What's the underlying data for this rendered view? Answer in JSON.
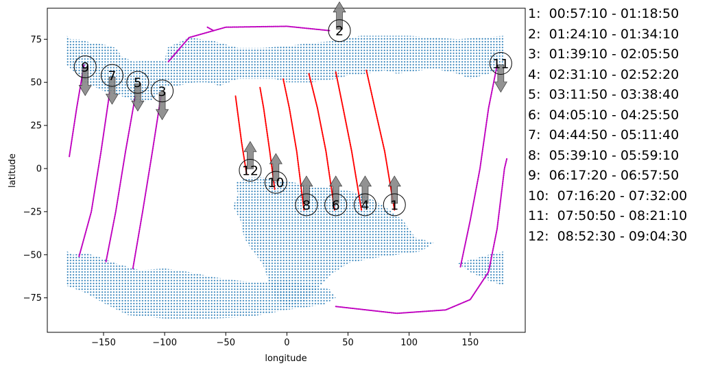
{
  "chart_data": {
    "type": "scatter",
    "title": "",
    "xlabel": "longitude",
    "ylabel": "latitude",
    "xlim": [
      -196,
      195
    ],
    "ylim": [
      -95,
      93
    ],
    "xticks": [
      -150,
      -100,
      -50,
      0,
      50,
      100,
      150
    ],
    "yticks": [
      -75,
      -50,
      -25,
      0,
      25,
      50,
      75
    ],
    "grid": false,
    "colors": {
      "land": "#1f77b4",
      "track_day": "#ff0000",
      "track_night": "#bf00bf",
      "arrow": "#808080",
      "marker": "#000000"
    },
    "land_regions": [
      {
        "lon": [
          -180,
          178
        ],
        "lat": [
          38,
          77
        ],
        "note": "northern band"
      },
      {
        "lon": [
          -180,
          178
        ],
        "lat": [
          -88,
          -48
        ],
        "note": "southern band"
      },
      {
        "lon": [
          -45,
          120
        ],
        "lat": [
          -80,
          -2
        ],
        "note": "central block"
      }
    ],
    "tracks": [
      {
        "id": "1",
        "color": "red",
        "points": [
          [
            88,
            -24
          ],
          [
            80,
            10
          ],
          [
            72,
            35
          ],
          [
            65,
            57
          ]
        ]
      },
      {
        "id": "4",
        "color": "red",
        "points": [
          [
            61,
            -24
          ],
          [
            53,
            10
          ],
          [
            46,
            35
          ],
          [
            40,
            56
          ]
        ]
      },
      {
        "id": "6",
        "color": "red",
        "points": [
          [
            39,
            -24
          ],
          [
            32,
            10
          ],
          [
            25,
            35
          ],
          [
            18,
            55
          ]
        ]
      },
      {
        "id": "8",
        "color": "red",
        "points": [
          [
            14,
            -24
          ],
          [
            8,
            10
          ],
          [
            2,
            35
          ],
          [
            -3,
            52
          ]
        ]
      },
      {
        "id": "10",
        "color": "red",
        "points": [
          [
            -10,
            -12
          ],
          [
            -14,
            10
          ],
          [
            -19,
            35
          ],
          [
            -22,
            47
          ]
        ]
      },
      {
        "id": "12",
        "color": "red",
        "points": [
          [
            -33,
            -3
          ],
          [
            -37,
            15
          ],
          [
            -42,
            42
          ]
        ]
      },
      {
        "id": "9",
        "color": "magenta",
        "points": [
          [
            -178,
            7
          ],
          [
            -172,
            35
          ],
          [
            -166,
            60
          ]
        ]
      },
      {
        "id": "7",
        "color": "magenta",
        "points": [
          [
            -170,
            -51
          ],
          [
            -160,
            -25
          ],
          [
            -152,
            10
          ],
          [
            -145,
            44
          ]
        ]
      },
      {
        "id": "5",
        "color": "magenta",
        "points": [
          [
            -148,
            -54
          ],
          [
            -140,
            -25
          ],
          [
            -132,
            10
          ],
          [
            -124,
            42
          ]
        ]
      },
      {
        "id": "3",
        "color": "magenta",
        "points": [
          [
            -126,
            -58
          ],
          [
            -118,
            -25
          ],
          [
            -110,
            10
          ],
          [
            -103,
            42
          ]
        ]
      },
      {
        "id": "2",
        "color": "magenta",
        "points": [
          [
            -97,
            62
          ],
          [
            -80,
            76
          ],
          [
            -50,
            82
          ],
          [
            0,
            82.5
          ],
          [
            35,
            80
          ]
        ]
      },
      {
        "id": "11",
        "color": "magenta",
        "points": [
          [
            142,
            -57
          ],
          [
            150,
            -30
          ],
          [
            158,
            0
          ],
          [
            165,
            35
          ],
          [
            172,
            60
          ]
        ]
      },
      {
        "id": "11b",
        "color": "magenta",
        "points": [
          [
            -65,
            82
          ],
          [
            -60,
            80
          ]
        ]
      },
      {
        "id": "s",
        "color": "magenta",
        "points": [
          [
            40,
            -80
          ],
          [
            90,
            -84
          ],
          [
            130,
            -82
          ],
          [
            150,
            -76
          ],
          [
            165,
            -60
          ],
          [
            172,
            -35
          ],
          [
            178,
            0
          ],
          [
            180,
            6
          ]
        ]
      }
    ],
    "markers": [
      {
        "label": "1",
        "lon": 88,
        "lat": -21,
        "arrow": "up"
      },
      {
        "label": "2",
        "lon": 43,
        "lat": 80,
        "arrow": "up"
      },
      {
        "label": "3",
        "lon": -102,
        "lat": 45,
        "arrow": "down"
      },
      {
        "label": "4",
        "lon": 64,
        "lat": -21,
        "arrow": "up"
      },
      {
        "label": "5",
        "lon": -122,
        "lat": 50,
        "arrow": "down"
      },
      {
        "label": "6",
        "lon": 40,
        "lat": -21,
        "arrow": "up"
      },
      {
        "label": "7",
        "lon": -143,
        "lat": 54,
        "arrow": "down"
      },
      {
        "label": "8",
        "lon": 16,
        "lat": -21,
        "arrow": "up"
      },
      {
        "label": "9",
        "lon": -165,
        "lat": 59,
        "arrow": "down"
      },
      {
        "label": "10",
        "lon": -9,
        "lat": -8,
        "arrow": "up"
      },
      {
        "label": "11",
        "lon": 175,
        "lat": 61,
        "arrow": "down"
      },
      {
        "label": "12",
        "lon": -30,
        "lat": -1,
        "arrow": "up"
      }
    ],
    "legend": {
      "placement": "right",
      "entries": [
        "1:  00:57:10 - 01:18:50",
        "2:  01:24:10 - 01:34:10",
        "3:  01:39:10 - 02:05:50",
        "4:  02:31:10 - 02:52:20",
        "5:  03:11:50 - 03:38:40",
        "6:  04:05:10 - 04:25:50",
        "7:  04:44:50 - 05:11:40",
        "8:  05:39:10 - 05:59:10",
        "9:  06:17:20 - 06:57:50",
        "10:  07:16:20 - 07:32:00",
        "11:  07:50:50 - 08:21:10",
        "12:  08:52:30 - 09:04:30"
      ]
    }
  }
}
